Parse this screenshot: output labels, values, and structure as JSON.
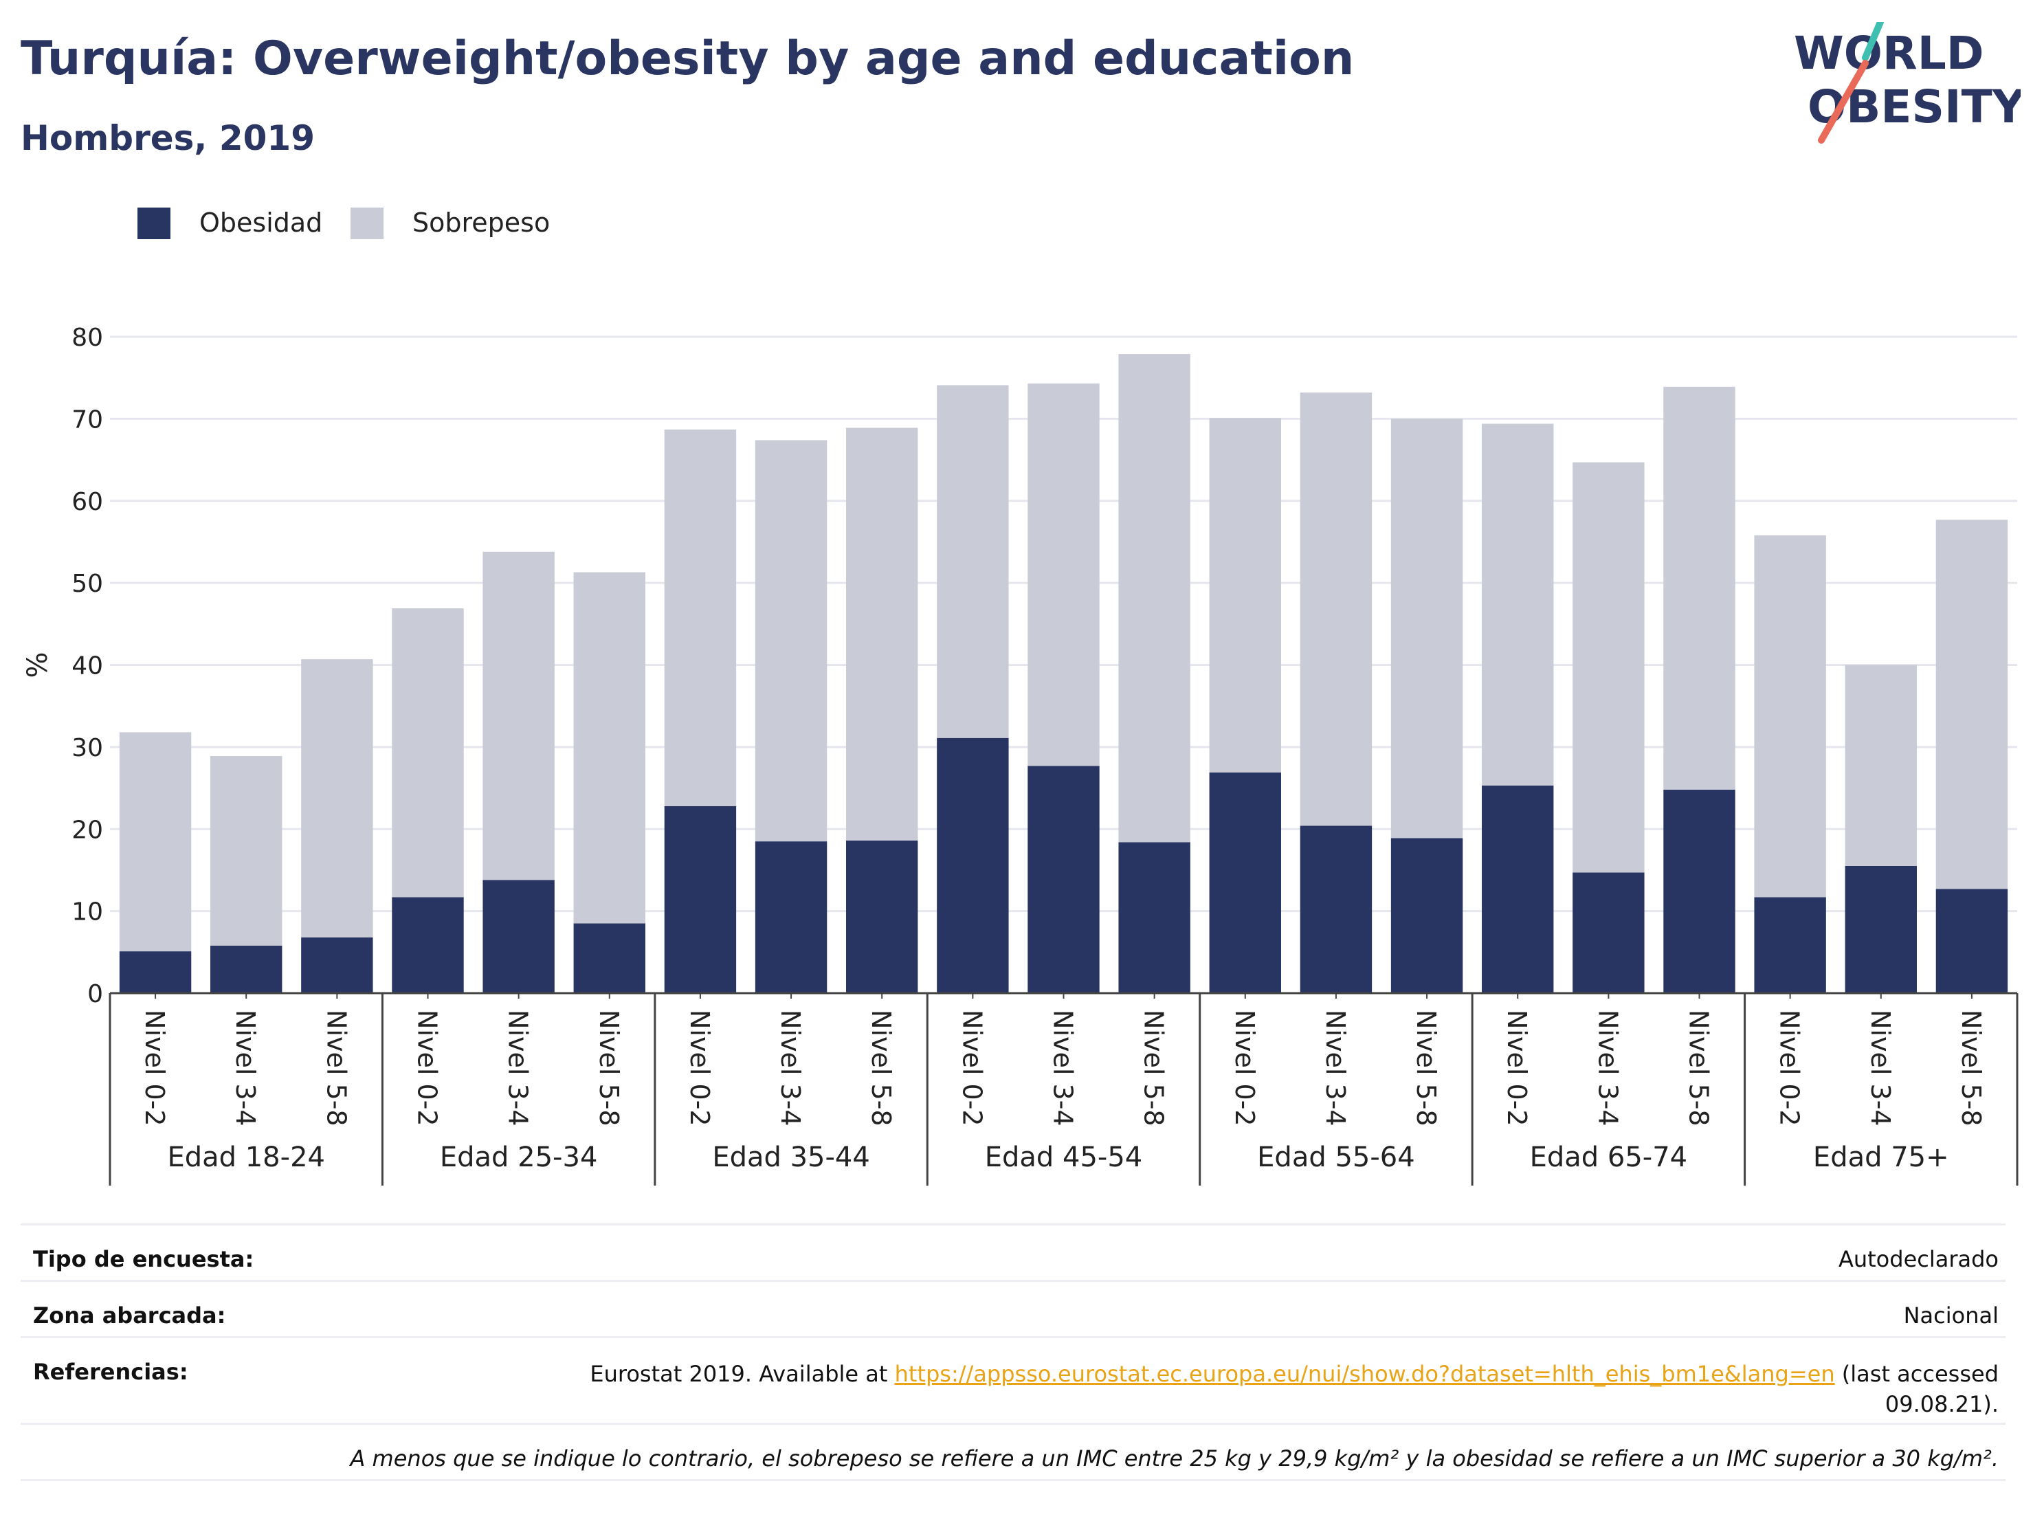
{
  "header": {
    "title": "Turquía: Overweight/obesity by age and education",
    "subtitle": "Hombres, 2019"
  },
  "logo": {
    "line1": "WORLD",
    "line2": "OBESITY",
    "colors": {
      "text": "#2a3561",
      "slash_top": "#3fbfb0",
      "slash_bottom": "#ea6a5a"
    }
  },
  "legend": [
    {
      "label": "Obesidad",
      "color": "#283562"
    },
    {
      "label": "Sobrepeso",
      "color": "#c9cbd6"
    }
  ],
  "chart_data": {
    "type": "bar",
    "stacked": true,
    "ylabel": "%",
    "xlabel": "",
    "ylim": [
      0,
      80
    ],
    "yticks": [
      0,
      10,
      20,
      30,
      40,
      50,
      60,
      70,
      80
    ],
    "grid": true,
    "legend_position": "top-left",
    "groups": [
      {
        "label": "Edad 18-24",
        "categories": [
          "Nivel 0-2",
          "Nivel 3-4",
          "Nivel 5-8"
        ]
      },
      {
        "label": "Edad 25-34",
        "categories": [
          "Nivel 0-2",
          "Nivel 3-4",
          "Nivel 5-8"
        ]
      },
      {
        "label": "Edad 35-44",
        "categories": [
          "Nivel 0-2",
          "Nivel 3-4",
          "Nivel 5-8"
        ]
      },
      {
        "label": "Edad 45-54",
        "categories": [
          "Nivel 0-2",
          "Nivel 3-4",
          "Nivel 5-8"
        ]
      },
      {
        "label": "Edad 55-64",
        "categories": [
          "Nivel 0-2",
          "Nivel 3-4",
          "Nivel 5-8"
        ]
      },
      {
        "label": "Edad 65-74",
        "categories": [
          "Nivel 0-2",
          "Nivel 3-4",
          "Nivel 5-8"
        ]
      },
      {
        "label": "Edad 75+",
        "categories": [
          "Nivel 0-2",
          "Nivel 3-4",
          "Nivel 5-8"
        ]
      }
    ],
    "series": [
      {
        "name": "Obesidad",
        "color": "#283562",
        "values": [
          5.1,
          5.8,
          6.8,
          11.7,
          13.8,
          8.5,
          22.8,
          18.5,
          18.6,
          31.1,
          27.7,
          18.4,
          26.9,
          20.4,
          18.9,
          25.3,
          14.7,
          24.8,
          11.7,
          15.5,
          12.7
        ]
      },
      {
        "name": "Sobrepeso",
        "color": "#c9cbd6",
        "values": [
          26.7,
          23.1,
          33.9,
          35.2,
          40.0,
          42.8,
          45.9,
          48.9,
          50.3,
          43.0,
          46.6,
          59.5,
          43.2,
          52.8,
          51.1,
          44.1,
          50.0,
          49.1,
          44.1,
          24.5,
          45.0
        ]
      }
    ]
  },
  "info": {
    "survey_label": "Tipo de encuesta:",
    "survey_value": "Autodeclarado",
    "area_label": "Zona abarcada:",
    "area_value": "Nacional",
    "ref_label": "Referencias:",
    "ref_prefix": "Eurostat 2019. Available at ",
    "ref_link": "https://appsso.eurostat.ec.europa.eu/nui/show.do?dataset=hlth_ehis_bm1e&lang=en",
    "ref_suffix_1": " (last accessed",
    "ref_suffix_2": "09.08.21).",
    "footnote": "A menos que se indique lo contrario, el sobrepeso se refiere a un IMC entre 25 kg y 29,9 kg/m² y la obesidad se refiere a un IMC superior a 30 kg/m²."
  }
}
